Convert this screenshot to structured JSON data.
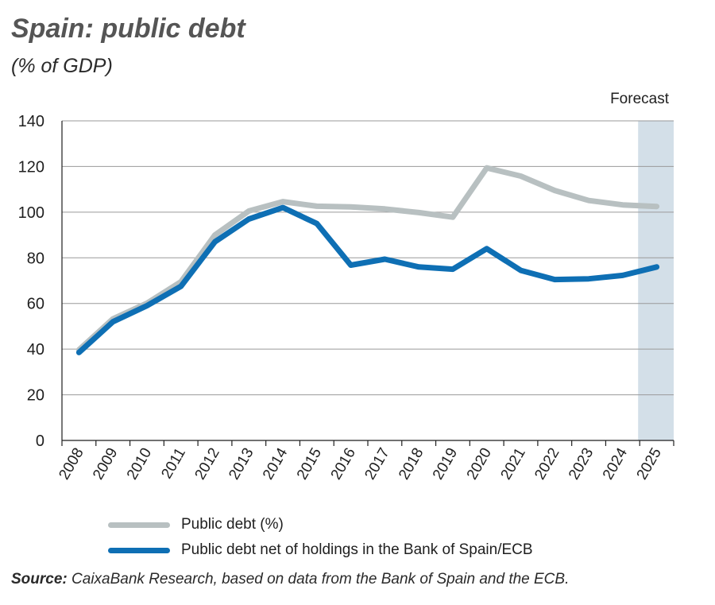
{
  "header": {
    "title": "Spain: public debt",
    "subtitle": "(% of GDP)"
  },
  "chart_data": {
    "type": "line",
    "title": "Spain: public debt",
    "subtitle": "(% of GDP)",
    "xlabel": "",
    "ylabel": "",
    "ylim": [
      0,
      140
    ],
    "yticks": [
      0,
      20,
      40,
      60,
      80,
      100,
      120,
      140
    ],
    "grid": "horizontal",
    "categories": [
      "2008",
      "2009",
      "2010",
      "2011",
      "2012",
      "2013",
      "2014",
      "2015",
      "2016",
      "2017",
      "2018",
      "2019",
      "2020",
      "2021",
      "2022",
      "2023",
      "2024",
      "2025"
    ],
    "series": [
      {
        "name": "Public debt (%)",
        "color": "#b8c0c1",
        "values": [
          39.7,
          53.3,
          60.1,
          69.5,
          90.0,
          100.5,
          104.6,
          102.6,
          102.3,
          101.4,
          99.8,
          97.8,
          119.4,
          115.8,
          109.5,
          105.1,
          103.2,
          102.5
        ]
      },
      {
        "name": "Public debt net of holdings in the Bank of Spain/ECB",
        "color": "#0e6fb4",
        "values": [
          38.5,
          52.0,
          59.0,
          67.5,
          87.0,
          97.0,
          102.0,
          95.0,
          76.8,
          79.4,
          76.0,
          75.0,
          84.0,
          74.5,
          70.5,
          70.8,
          72.3,
          76.0
        ]
      }
    ],
    "forecast": {
      "label": "Forecast",
      "from": "2024",
      "to": "2025",
      "color": "#d3dfe8"
    },
    "legend_position": "bottom"
  },
  "legend": {
    "items": [
      {
        "label": "Public debt (%)",
        "color": "#b8c0c1"
      },
      {
        "label": "Public debt net of holdings in the Bank of Spain/ECB",
        "color": "#0e6fb4"
      }
    ]
  },
  "footer": {
    "source_label": "Source:",
    "source_text": " CaixaBank Research, based on data from the Bank of Spain and the ECB."
  }
}
